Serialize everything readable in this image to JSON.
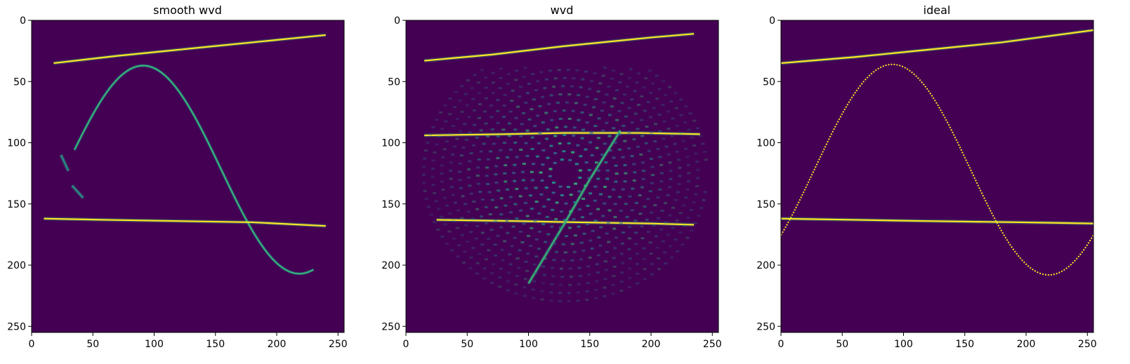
{
  "colors": {
    "background": "#440154",
    "low": "#31688e",
    "mid": "#21918c",
    "high": "#35b779",
    "peak": "#fde725",
    "frame": "#000000"
  },
  "chart_data": [
    {
      "type": "heatmap",
      "title": "smooth wvd",
      "xlim": [
        0,
        255
      ],
      "ylim": [
        255,
        0
      ],
      "xticks": [
        0,
        50,
        100,
        150,
        200,
        250
      ],
      "yticks": [
        0,
        50,
        100,
        150,
        200,
        250
      ],
      "colormap": "viridis",
      "features": [
        {
          "kind": "line",
          "points": [
            [
              18,
              35
            ],
            [
              70,
              29
            ],
            [
              110,
              25
            ],
            [
              150,
              21
            ],
            [
              190,
              17
            ],
            [
              240,
              12
            ]
          ],
          "color": "#fde725",
          "strength": "high"
        },
        {
          "kind": "sine",
          "x_start": 35,
          "x_end": 230,
          "center": 122,
          "amplitude": 85,
          "period": 255,
          "phase_x": 91,
          "color": "#35b779",
          "strength": "mid"
        },
        {
          "kind": "line",
          "points": [
            [
              10,
              162
            ],
            [
              60,
              163
            ],
            [
              120,
              164
            ],
            [
              180,
              165
            ],
            [
              240,
              168
            ]
          ],
          "color": "#fde725",
          "strength": "high"
        },
        {
          "kind": "line",
          "points": [
            [
              24,
              110
            ],
            [
              30,
              123
            ]
          ],
          "color": "#21918c",
          "strength": "low"
        },
        {
          "kind": "line",
          "points": [
            [
              33,
              135
            ],
            [
              42,
              145
            ]
          ],
          "color": "#21918c",
          "strength": "low"
        }
      ]
    },
    {
      "type": "heatmap",
      "title": "wvd",
      "xlim": [
        0,
        255
      ],
      "ylim": [
        255,
        0
      ],
      "xticks": [
        0,
        50,
        100,
        150,
        200,
        250
      ],
      "yticks": [
        0,
        50,
        100,
        150,
        200,
        250
      ],
      "colormap": "viridis",
      "features": [
        {
          "kind": "line",
          "points": [
            [
              15,
              33
            ],
            [
              70,
              28
            ],
            [
              130,
              21
            ],
            [
              200,
              14
            ],
            [
              235,
              11
            ]
          ],
          "color": "#fde725",
          "strength": "high"
        },
        {
          "kind": "line",
          "points": [
            [
              15,
              94
            ],
            [
              80,
              93
            ],
            [
              130,
              92
            ],
            [
              190,
              92
            ],
            [
              240,
              93
            ]
          ],
          "color": "#fde725",
          "strength": "high"
        },
        {
          "kind": "line",
          "points": [
            [
              25,
              163
            ],
            [
              90,
              164
            ],
            [
              140,
              165
            ],
            [
              200,
              166
            ],
            [
              235,
              167
            ]
          ],
          "color": "#fde725",
          "strength": "high"
        },
        {
          "kind": "line",
          "points": [
            [
              100,
              215
            ],
            [
              130,
              165
            ],
            [
              150,
              130
            ],
            [
              175,
              90
            ]
          ],
          "color": "#35b779",
          "strength": "high"
        },
        {
          "kind": "interference",
          "center": [
            130,
            125
          ],
          "radius": 110,
          "color": "#21918c"
        }
      ]
    },
    {
      "type": "heatmap",
      "title": "ideal",
      "xlim": [
        0,
        255
      ],
      "ylim": [
        255,
        0
      ],
      "xticks": [
        0,
        50,
        100,
        150,
        200,
        250
      ],
      "yticks": [
        0,
        50,
        100,
        150,
        200,
        250
      ],
      "colormap": "viridis",
      "features": [
        {
          "kind": "line",
          "points": [
            [
              0,
              35
            ],
            [
              60,
              30
            ],
            [
              120,
              24
            ],
            [
              180,
              18
            ],
            [
              255,
              8
            ]
          ],
          "color": "#fde725",
          "strength": "high"
        },
        {
          "kind": "sine",
          "x_start": 0,
          "x_end": 255,
          "center": 122,
          "amplitude": 86,
          "period": 255,
          "phase_x": 91,
          "color": "#fde725",
          "strength": "high"
        },
        {
          "kind": "line",
          "points": [
            [
              0,
              162
            ],
            [
              60,
              163
            ],
            [
              120,
              164
            ],
            [
              195,
              165
            ],
            [
              255,
              166
            ]
          ],
          "color": "#fde725",
          "strength": "high"
        }
      ]
    }
  ]
}
